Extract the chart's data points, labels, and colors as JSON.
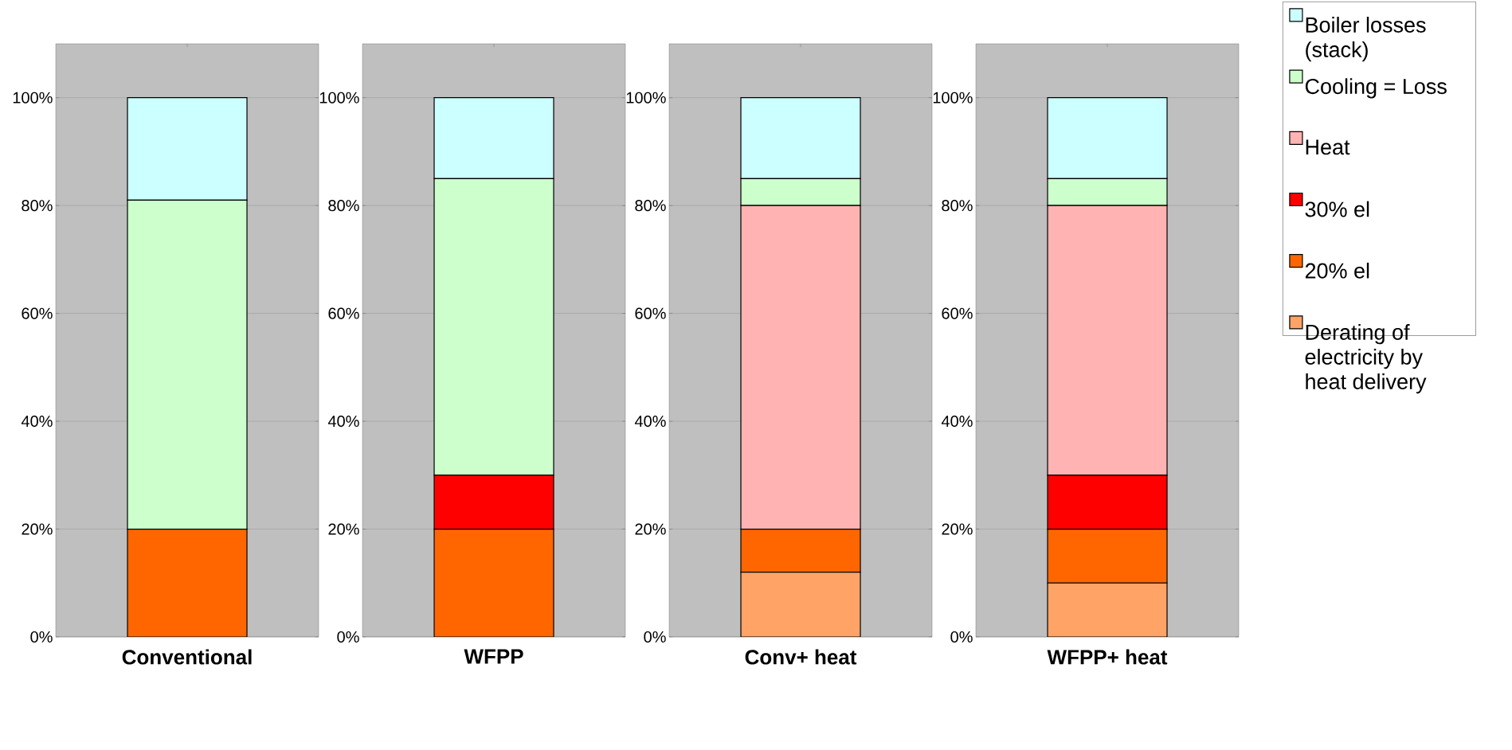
{
  "chart_data": [
    {
      "type": "bar",
      "stacked": true,
      "grid": "y",
      "categories": [
        "Conventional"
      ],
      "ylim": [
        0,
        110
      ],
      "yticks": [
        {
          "value": 0,
          "label": "0%"
        },
        {
          "value": 20,
          "label": "20%"
        },
        {
          "value": 40,
          "label": "40%"
        },
        {
          "value": 60,
          "label": "60%"
        },
        {
          "value": 80,
          "label": "80%"
        },
        {
          "value": 100,
          "label": "100%"
        }
      ],
      "series": [
        {
          "color": "#ff6600",
          "values": [
            20
          ]
        },
        {
          "color": "#ccffcc",
          "values": [
            61
          ]
        },
        {
          "color": "#ccffff",
          "values": [
            19
          ]
        }
      ]
    },
    {
      "type": "bar",
      "stacked": true,
      "grid": "y",
      "categories": [
        "WFPP"
      ],
      "ylim": [
        0,
        110
      ],
      "yticks": [
        {
          "value": 0,
          "label": "0%"
        },
        {
          "value": 20,
          "label": "20%"
        },
        {
          "value": 40,
          "label": "40%"
        },
        {
          "value": 60,
          "label": "60%"
        },
        {
          "value": 80,
          "label": "80%"
        },
        {
          "value": 100,
          "label": "100%"
        }
      ],
      "series": [
        {
          "color": "#ff6600",
          "values": [
            20
          ]
        },
        {
          "color": "#ff0000",
          "values": [
            10
          ]
        },
        {
          "color": "#ccffcc",
          "values": [
            55
          ]
        },
        {
          "color": "#ccffff",
          "values": [
            15
          ]
        }
      ]
    },
    {
      "type": "bar",
      "stacked": true,
      "grid": "y",
      "categories": [
        "Conv+ heat"
      ],
      "ylim": [
        0,
        110
      ],
      "yticks": [
        {
          "value": 0,
          "label": "0%"
        },
        {
          "value": 20,
          "label": "20%"
        },
        {
          "value": 40,
          "label": "40%"
        },
        {
          "value": 60,
          "label": "60%"
        },
        {
          "value": 80,
          "label": "80%"
        },
        {
          "value": 100,
          "label": "100%"
        }
      ],
      "series": [
        {
          "color": "#ffa366",
          "values": [
            12
          ]
        },
        {
          "color": "#ff6600",
          "values": [
            8
          ]
        },
        {
          "color": "#ffb3b3",
          "values": [
            60
          ]
        },
        {
          "color": "#ccffcc",
          "values": [
            5
          ]
        },
        {
          "color": "#ccffff",
          "values": [
            15
          ]
        }
      ]
    },
    {
      "type": "bar",
      "stacked": true,
      "grid": "y",
      "legend": "right",
      "categories": [
        "WFPP+ heat"
      ],
      "ylim": [
        0,
        110
      ],
      "yticks": [
        {
          "value": 0,
          "label": "0%"
        },
        {
          "value": 20,
          "label": "20%"
        },
        {
          "value": 40,
          "label": "40%"
        },
        {
          "value": 60,
          "label": "60%"
        },
        {
          "value": 80,
          "label": "80%"
        },
        {
          "value": 100,
          "label": "100%"
        }
      ],
      "series": [
        {
          "name": "Derating of electricity by heat delivery",
          "color": "#ffa366",
          "values": [
            10
          ]
        },
        {
          "name": "20% el",
          "color": "#ff6600",
          "values": [
            10
          ]
        },
        {
          "name": "30% el",
          "color": "#ff0000",
          "values": [
            10
          ]
        },
        {
          "name": "Heat",
          "color": "#ffb3b3",
          "values": [
            50
          ]
        },
        {
          "name": "Cooling = Loss",
          "color": "#ccffcc",
          "values": [
            5
          ]
        },
        {
          "name": "Boiler losses (stack)",
          "color": "#ccffff",
          "values": [
            15
          ]
        }
      ]
    }
  ]
}
